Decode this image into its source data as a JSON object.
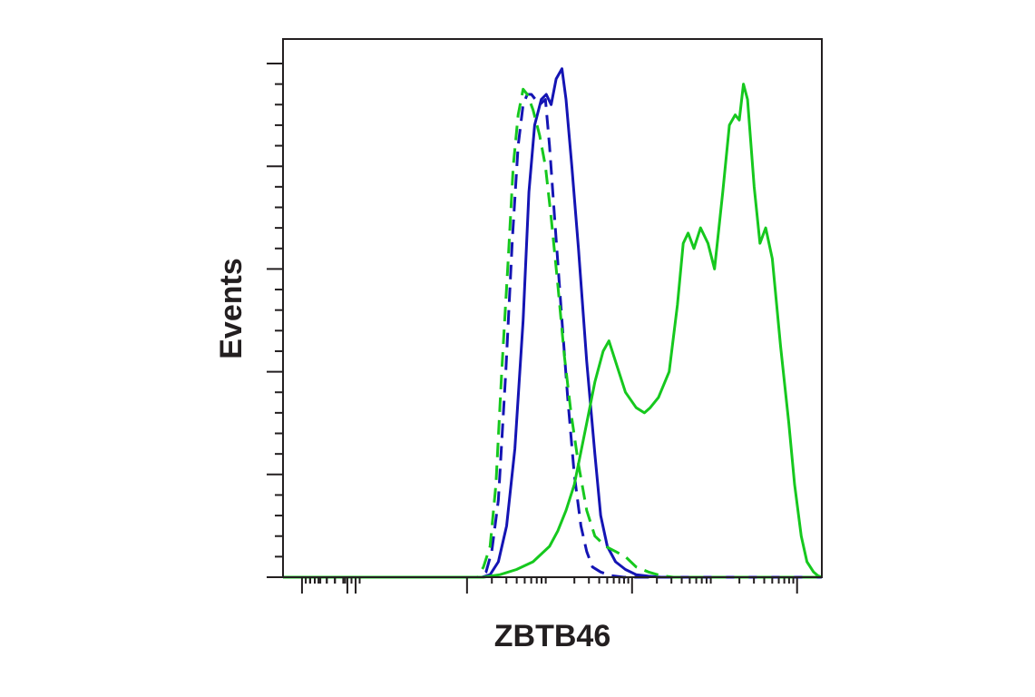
{
  "chart_data": {
    "type": "line",
    "xlabel": "ZBTB46",
    "ylabel": "Events",
    "x_scale": "log",
    "xlim": [
      -3.23,
      3.3
    ],
    "ylim": [
      0,
      100
    ],
    "grid": false,
    "legend": "none",
    "x_major_ticks": [
      -3,
      -1,
      1,
      3
    ],
    "y_major_ticks": [
      0,
      20,
      40,
      60,
      80,
      100
    ],
    "series": [
      {
        "color": "#1414b4",
        "dash": false,
        "points": [
          [
            -3.23,
            0
          ],
          [
            -0.82,
            0
          ],
          [
            -0.72,
            0.5
          ],
          [
            -0.62,
            3
          ],
          [
            -0.52,
            10
          ],
          [
            -0.42,
            25
          ],
          [
            -0.32,
            50
          ],
          [
            -0.25,
            75
          ],
          [
            -0.18,
            88
          ],
          [
            -0.1,
            93
          ],
          [
            -0.04,
            94
          ],
          [
            0.02,
            92
          ],
          [
            0.08,
            97
          ],
          [
            0.15,
            99
          ],
          [
            0.2,
            93
          ],
          [
            0.27,
            80
          ],
          [
            0.35,
            64
          ],
          [
            0.45,
            42
          ],
          [
            0.55,
            24
          ],
          [
            0.62,
            12
          ],
          [
            0.7,
            6
          ],
          [
            0.8,
            3
          ],
          [
            0.92,
            1.5
          ],
          [
            1.05,
            0.5
          ],
          [
            1.2,
            0.2
          ],
          [
            1.35,
            0
          ],
          [
            3.3,
            0
          ]
        ]
      },
      {
        "color": "#1414b4",
        "dash": true,
        "points": [
          [
            -3.23,
            0
          ],
          [
            -0.85,
            0
          ],
          [
            -0.77,
            1
          ],
          [
            -0.7,
            5
          ],
          [
            -0.62,
            15
          ],
          [
            -0.53,
            40
          ],
          [
            -0.45,
            66
          ],
          [
            -0.38,
            84
          ],
          [
            -0.32,
            92
          ],
          [
            -0.27,
            94
          ],
          [
            -0.22,
            94
          ],
          [
            -0.12,
            92
          ],
          [
            -0.05,
            93
          ],
          [
            0.0,
            84
          ],
          [
            0.07,
            68
          ],
          [
            0.15,
            50
          ],
          [
            0.22,
            35
          ],
          [
            0.3,
            20
          ],
          [
            0.38,
            10
          ],
          [
            0.45,
            5
          ],
          [
            0.52,
            2
          ],
          [
            0.62,
            1
          ],
          [
            0.75,
            0.3
          ],
          [
            0.9,
            0
          ],
          [
            3.3,
            0
          ]
        ]
      },
      {
        "color": "#16c81e",
        "dash": true,
        "points": [
          [
            -3.23,
            0
          ],
          [
            -0.87,
            0
          ],
          [
            -0.8,
            2
          ],
          [
            -0.72,
            6
          ],
          [
            -0.65,
            18
          ],
          [
            -0.58,
            40
          ],
          [
            -0.5,
            62
          ],
          [
            -0.44,
            80
          ],
          [
            -0.38,
            90
          ],
          [
            -0.32,
            95
          ],
          [
            -0.27,
            94
          ],
          [
            -0.2,
            91
          ],
          [
            -0.12,
            86
          ],
          [
            -0.05,
            80
          ],
          [
            0.02,
            70
          ],
          [
            0.1,
            57
          ],
          [
            0.18,
            43
          ],
          [
            0.26,
            32
          ],
          [
            0.35,
            22
          ],
          [
            0.45,
            13
          ],
          [
            0.55,
            8
          ],
          [
            0.68,
            6
          ],
          [
            0.8,
            5
          ],
          [
            0.92,
            4
          ],
          [
            1.05,
            2
          ],
          [
            1.2,
            1
          ],
          [
            1.35,
            0.3
          ],
          [
            1.5,
            0
          ],
          [
            3.3,
            0
          ]
        ]
      },
      {
        "color": "#16c81e",
        "dash": false,
        "points": [
          [
            -3.23,
            0
          ],
          [
            -0.8,
            0
          ],
          [
            -0.6,
            0.5
          ],
          [
            -0.4,
            1.5
          ],
          [
            -0.2,
            3
          ],
          [
            0.0,
            6
          ],
          [
            0.1,
            9
          ],
          [
            0.2,
            13
          ],
          [
            0.3,
            18
          ],
          [
            0.45,
            30
          ],
          [
            0.55,
            38
          ],
          [
            0.65,
            44
          ],
          [
            0.72,
            46
          ],
          [
            0.82,
            41
          ],
          [
            0.92,
            36
          ],
          [
            1.05,
            33
          ],
          [
            1.15,
            32
          ],
          [
            1.22,
            33
          ],
          [
            1.32,
            35
          ],
          [
            1.45,
            40
          ],
          [
            1.55,
            53
          ],
          [
            1.62,
            65
          ],
          [
            1.68,
            67
          ],
          [
            1.75,
            64
          ],
          [
            1.83,
            68
          ],
          [
            1.92,
            65
          ],
          [
            2.0,
            60
          ],
          [
            2.1,
            75
          ],
          [
            2.18,
            88
          ],
          [
            2.25,
            90
          ],
          [
            2.3,
            89
          ],
          [
            2.35,
            96
          ],
          [
            2.4,
            93
          ],
          [
            2.48,
            76
          ],
          [
            2.55,
            65
          ],
          [
            2.62,
            68
          ],
          [
            2.7,
            62
          ],
          [
            2.8,
            45
          ],
          [
            2.9,
            30
          ],
          [
            2.97,
            18
          ],
          [
            3.05,
            8
          ],
          [
            3.12,
            3
          ],
          [
            3.2,
            1
          ],
          [
            3.25,
            0.3
          ],
          [
            3.3,
            0
          ]
        ]
      }
    ]
  }
}
